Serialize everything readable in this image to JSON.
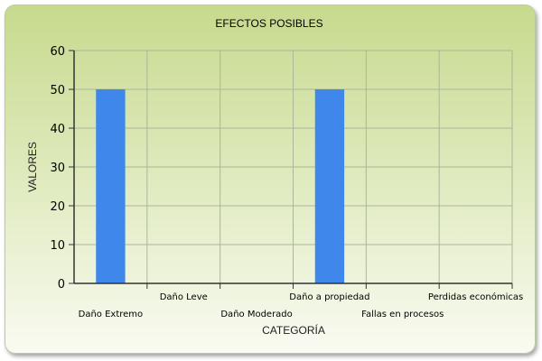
{
  "chart_data": {
    "type": "bar",
    "title": "EFECTOS POSIBLES",
    "xlabel": "CATEGORÍA",
    "ylabel": "VALORES",
    "categories": [
      "Daño Extremo",
      "Daño Leve",
      "Daño Moderado",
      "Daño a propiedad",
      "Fallas en procesos",
      "Perdidas económicas"
    ],
    "values": [
      50,
      0,
      0,
      50,
      0,
      0
    ],
    "ylim": [
      0,
      60
    ],
    "yticks": [
      "0",
      "10",
      "20",
      "30",
      "40",
      "50",
      "60"
    ],
    "grid": true,
    "bar_color": "#3f87ea",
    "grid_color": "#a9b79a",
    "legend": "none"
  }
}
